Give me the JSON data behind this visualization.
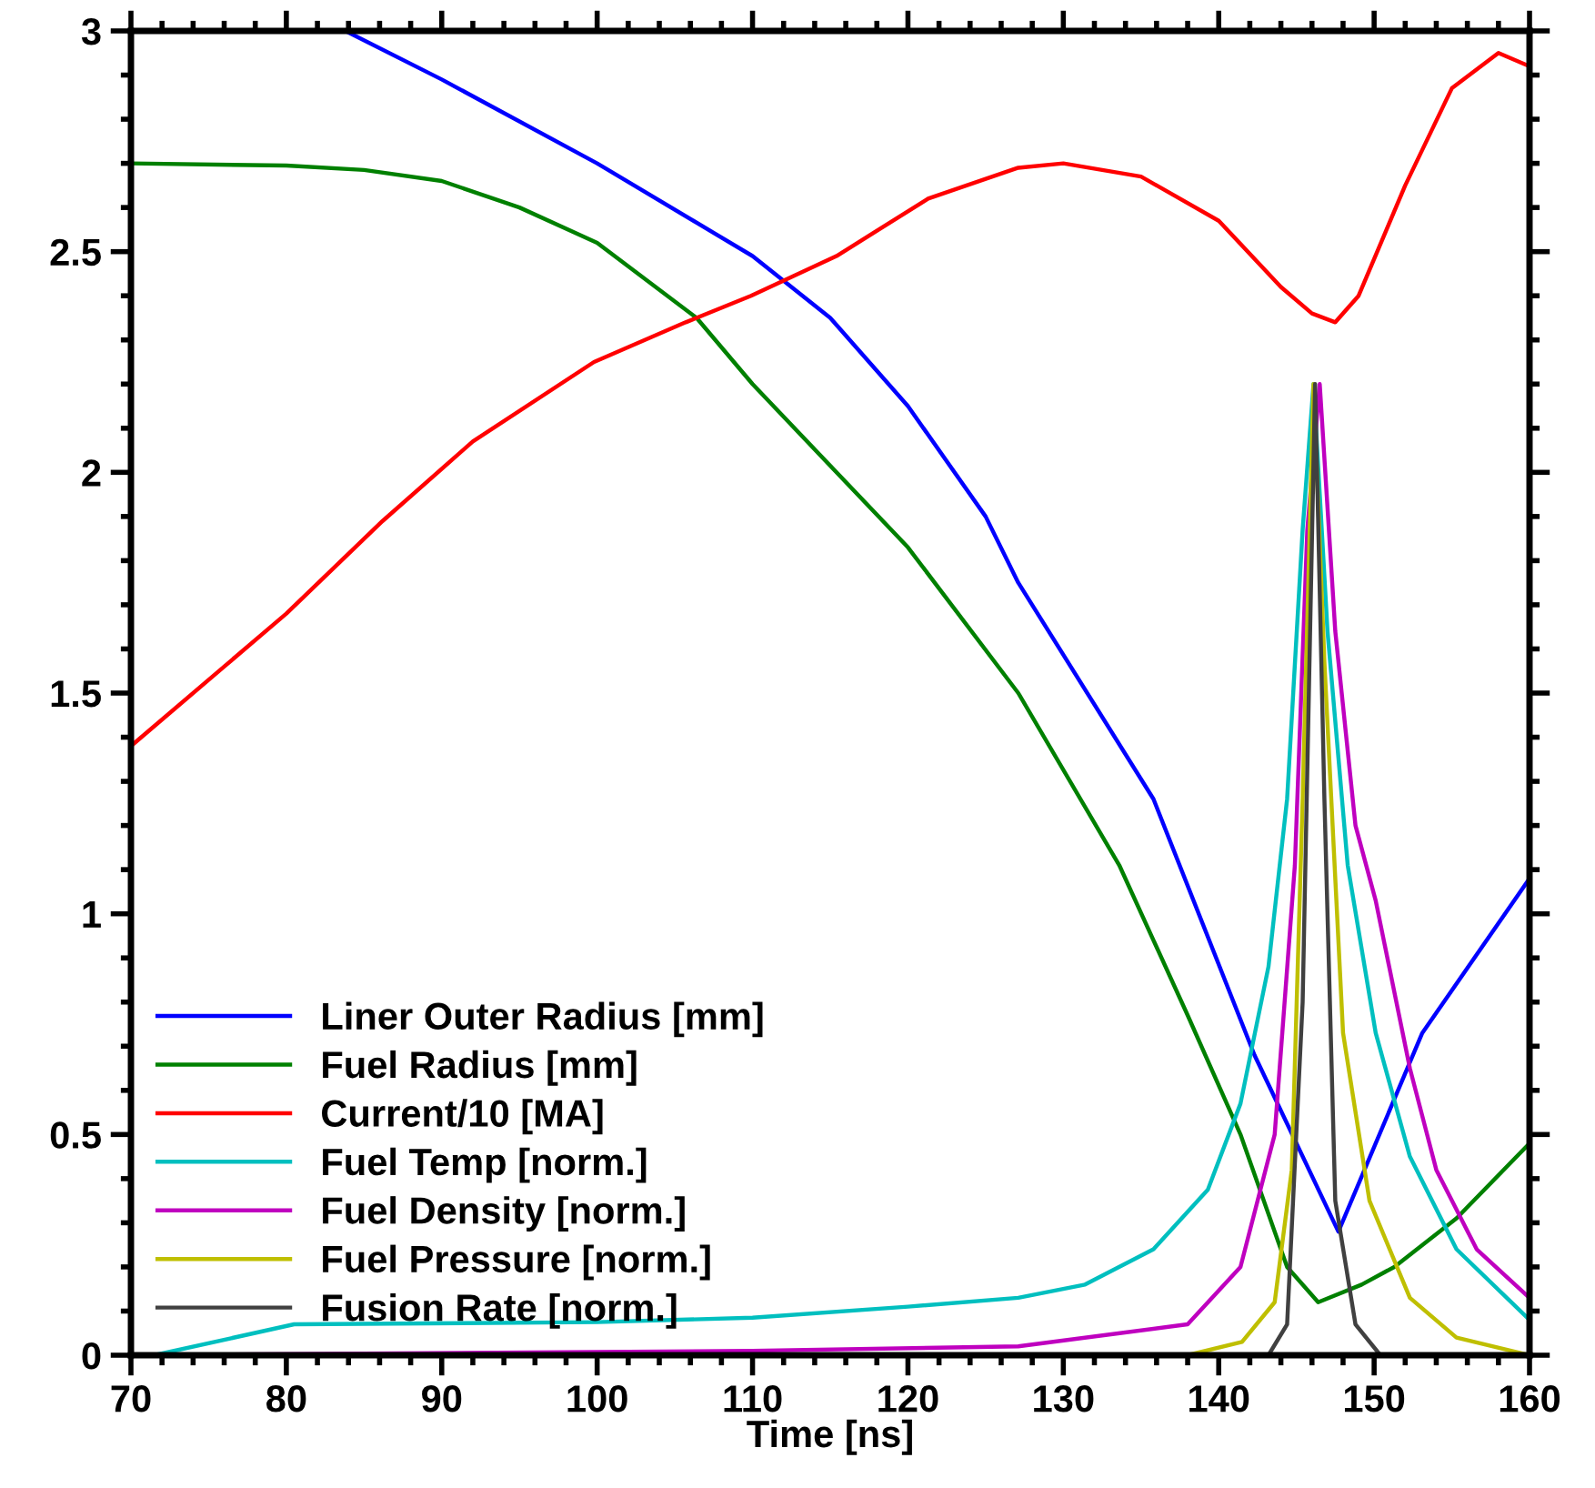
{
  "chart_data": {
    "type": "line",
    "xlabel": "Time [ns]",
    "xlim": [
      70,
      160
    ],
    "ylim": [
      0,
      3
    ],
    "xticks": [
      70,
      80,
      90,
      100,
      110,
      120,
      130,
      140,
      150,
      160
    ],
    "yticks": [
      0,
      0.5,
      1,
      1.5,
      2,
      2.5,
      3
    ],
    "grid": false,
    "legend": "bottom left",
    "marker": "none",
    "line_style": "solid",
    "series": [
      {
        "name": "Liner Outer Radius [mm]",
        "color": "#0000ff",
        "x": [
          83.8,
          90,
          100,
          110,
          115,
          120,
          125,
          127.1,
          135.8,
          142.3,
          147.7,
          153.1,
          160
        ],
        "values": [
          3.0,
          2.89,
          2.7,
          2.49,
          2.35,
          2.15,
          1.9,
          1.75,
          1.26,
          0.68,
          0.28,
          0.73,
          1.08
        ]
      },
      {
        "name": "Fuel Radius [mm]",
        "color": "#008000",
        "x": [
          70,
          80,
          85,
          90,
          95,
          100,
          106.4,
          110,
          120,
          127.1,
          133.6,
          138,
          141.4,
          144.4,
          146.4,
          149.2,
          151.3,
          155.3,
          160
        ],
        "values": [
          2.7,
          2.695,
          2.685,
          2.66,
          2.6,
          2.52,
          2.35,
          2.2,
          1.83,
          1.5,
          1.11,
          0.77,
          0.5,
          0.2,
          0.12,
          0.16,
          0.2,
          0.31,
          0.48
        ]
      },
      {
        "name": "Current/10 [MA]",
        "color": "#ff0000",
        "x": [
          70,
          76,
          80,
          86.2,
          92,
          99.8,
          105.7,
          109.9,
          115.4,
          121.3,
          127.1,
          130,
          135,
          140,
          144,
          146,
          147.5,
          149,
          152,
          155,
          158,
          160
        ],
        "values": [
          1.38,
          1.56,
          1.68,
          1.89,
          2.07,
          2.25,
          2.34,
          2.4,
          2.49,
          2.62,
          2.69,
          2.7,
          2.67,
          2.57,
          2.42,
          2.36,
          2.34,
          2.4,
          2.65,
          2.87,
          2.95,
          2.92
        ]
      },
      {
        "name": "Fuel Temp [norm.]",
        "color": "#00bfbf",
        "x": [
          70,
          71.5,
          80.5,
          100,
          110,
          120,
          127.1,
          131.4,
          135.8,
          139.3,
          141.4,
          143.2,
          144.4,
          145.4,
          146.1,
          147.0,
          148.3,
          150.1,
          152.3,
          155.3,
          160
        ],
        "values": [
          0,
          0,
          0.07,
          0.075,
          0.085,
          0.11,
          0.13,
          0.16,
          0.24,
          0.375,
          0.57,
          0.88,
          1.26,
          1.87,
          2.2,
          1.64,
          1.11,
          0.73,
          0.45,
          0.24,
          0.08
        ]
      },
      {
        "name": "Fuel Density [norm.]",
        "color": "#bf00bf",
        "x": [
          70,
          110,
          127.1,
          138,
          141.4,
          143.6,
          144.9,
          145.7,
          146.5,
          147.5,
          148.8,
          150.1,
          152.3,
          154.0,
          156.6,
          160
        ],
        "values": [
          0.0,
          0.01,
          0.02,
          0.07,
          0.2,
          0.5,
          1.11,
          1.87,
          2.2,
          1.64,
          1.2,
          1.03,
          0.65,
          0.42,
          0.24,
          0.13
        ]
      },
      {
        "name": "Fuel Pressure [norm.]",
        "color": "#bfbf00",
        "x": [
          70,
          138,
          141.5,
          143.6,
          144.7,
          145.4,
          146.1,
          146.8,
          148.0,
          149.7,
          152.3,
          155.3,
          160
        ],
        "values": [
          0,
          0.0,
          0.03,
          0.12,
          0.42,
          1.26,
          2.2,
          1.57,
          0.73,
          0.35,
          0.13,
          0.04,
          0.0
        ]
      },
      {
        "name": "Fusion Rate [norm.]",
        "color": "#404040",
        "x": [
          70,
          143.2,
          144.4,
          145.4,
          146.2,
          146.8,
          147.5,
          148.8,
          150.4,
          160
        ],
        "values": [
          0,
          0,
          0.07,
          0.8,
          2.2,
          1.26,
          0.35,
          0.07,
          0,
          0
        ]
      }
    ]
  }
}
